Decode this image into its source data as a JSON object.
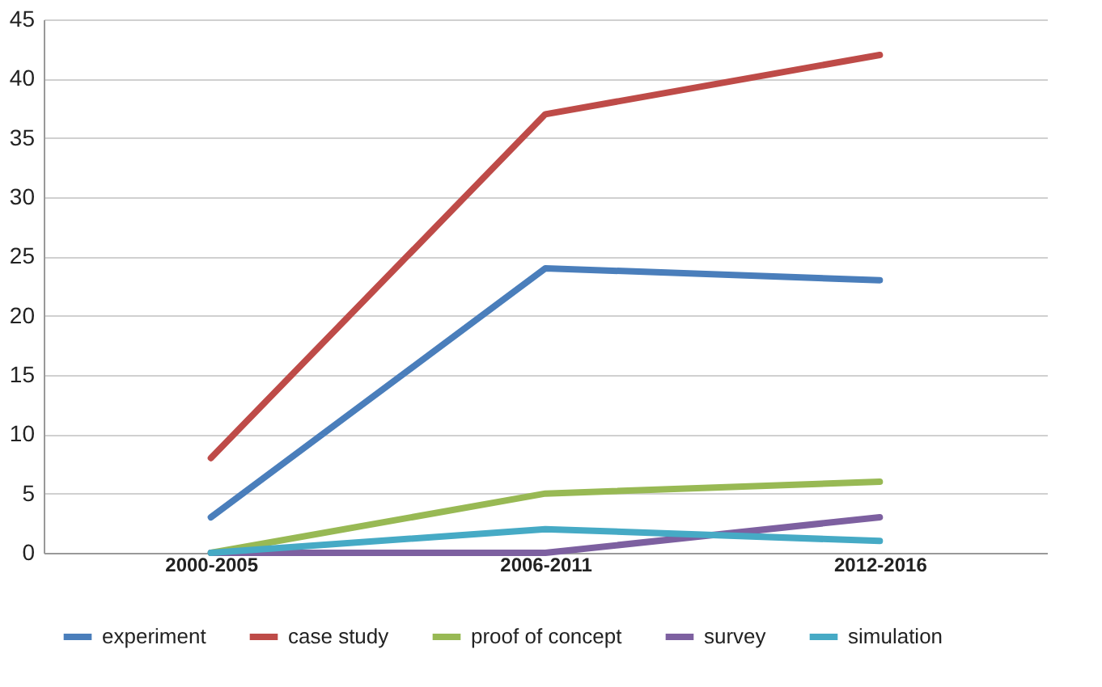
{
  "chart_data": {
    "type": "line",
    "categories": [
      "2000-2005",
      "2006-2011",
      "2012-2016"
    ],
    "series": [
      {
        "name": "experiment",
        "color": "#4a7ebb",
        "values": [
          3,
          24,
          23
        ]
      },
      {
        "name": "case study",
        "color": "#be4b48",
        "values": [
          8,
          37,
          42
        ]
      },
      {
        "name": "proof of concept",
        "color": "#98b954",
        "values": [
          0,
          5,
          6
        ]
      },
      {
        "name": "survey",
        "color": "#7d60a0",
        "values": [
          0,
          0,
          3
        ]
      },
      {
        "name": "simulation",
        "color": "#46aac5",
        "values": [
          0,
          2,
          1
        ]
      }
    ],
    "ylim": [
      0,
      45
    ],
    "yticks": [
      0,
      5,
      10,
      15,
      20,
      25,
      30,
      35,
      40,
      45
    ],
    "grid": "y",
    "legend": "bottom",
    "marker": "none",
    "line_style": "solid"
  }
}
